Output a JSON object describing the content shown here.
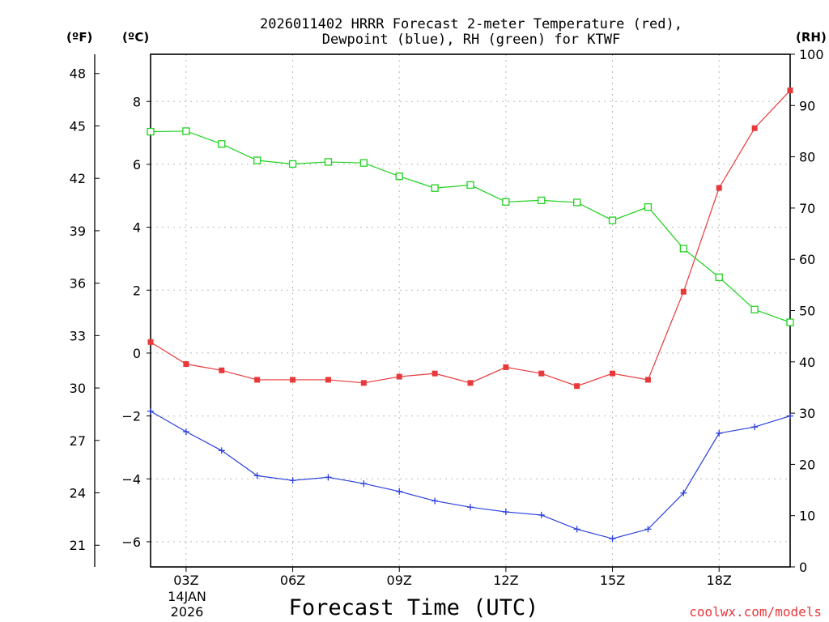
{
  "chart_data": {
    "type": "line",
    "title_lines": [
      "2026011402 HRRR Forecast 2-meter Temperature (red),",
      "Dewpoint (blue), RH (green) for KTWF"
    ],
    "xlabel": "Forecast Time (UTC)",
    "x_hours": [
      2,
      3,
      4,
      5,
      6,
      7,
      8,
      9,
      10,
      11,
      12,
      13,
      14,
      15,
      16,
      17,
      18,
      19,
      20
    ],
    "x_ticks": [
      {
        "hour": 3,
        "label": "03Z"
      },
      {
        "hour": 6,
        "label": "06Z"
      },
      {
        "hour": 9,
        "label": "09Z"
      },
      {
        "hour": 12,
        "label": "12Z"
      },
      {
        "hour": 15,
        "label": "15Z"
      },
      {
        "hour": 18,
        "label": "18Z"
      }
    ],
    "date_label_line1": "14JAN",
    "date_label_line2": "2026",
    "xlim": [
      2,
      20
    ],
    "y_left_celsius": {
      "unit_label": "(ºC)",
      "ylim": [
        -6.8,
        9.5
      ],
      "ticks": [
        "8",
        "6",
        "4",
        "2",
        "0",
        "−2",
        "−4",
        "−6"
      ],
      "tick_values": [
        8,
        6,
        4,
        2,
        0,
        -2,
        -4,
        -6
      ]
    },
    "y_left_fahrenheit": {
      "unit_label": "(ºF)",
      "ticks": [
        "48",
        "45",
        "42",
        "39",
        "36",
        "33",
        "30",
        "27",
        "24",
        "21"
      ],
      "tick_values": [
        48,
        45,
        42,
        39,
        36,
        33,
        30,
        27,
        24,
        21
      ]
    },
    "y_right_rh": {
      "unit_label": "(RH)",
      "ylim": [
        0,
        100
      ],
      "ticks": [
        "100",
        "90",
        "80",
        "70",
        "60",
        "50",
        "40",
        "30",
        "20",
        "10",
        "0"
      ],
      "tick_values": [
        100,
        90,
        80,
        70,
        60,
        50,
        40,
        30,
        20,
        10,
        0
      ]
    },
    "series": [
      {
        "name": "Temperature",
        "axis": "celsius",
        "color": "#e8383a",
        "marker": "filled-square",
        "values": [
          0.35,
          -0.35,
          -0.55,
          -0.85,
          -0.85,
          -0.85,
          -0.95,
          -0.75,
          -0.65,
          -0.95,
          -0.45,
          -0.65,
          -1.05,
          -0.65,
          -0.85,
          1.95,
          5.25,
          7.15,
          8.35
        ]
      },
      {
        "name": "Dewpoint",
        "axis": "celsius",
        "color": "#2a3fdc",
        "marker": "plus",
        "values": [
          -1.85,
          -2.5,
          -3.1,
          -3.9,
          -4.05,
          -3.95,
          -4.15,
          -4.4,
          -4.7,
          -4.9,
          -5.05,
          -5.15,
          -5.6,
          -5.9,
          -5.6,
          -4.45,
          -2.55,
          -2.35,
          -2.0
        ]
      },
      {
        "name": "RH",
        "axis": "rh",
        "color": "#1fd11f",
        "marker": "open-square",
        "values": [
          84.9,
          85.0,
          82.5,
          79.3,
          78.6,
          79.0,
          78.8,
          76.2,
          73.9,
          74.5,
          71.2,
          71.5,
          71.1,
          67.6,
          70.2,
          62.1,
          56.5,
          50.2,
          47.7
        ]
      }
    ]
  },
  "credit": "coolwx.com/models"
}
